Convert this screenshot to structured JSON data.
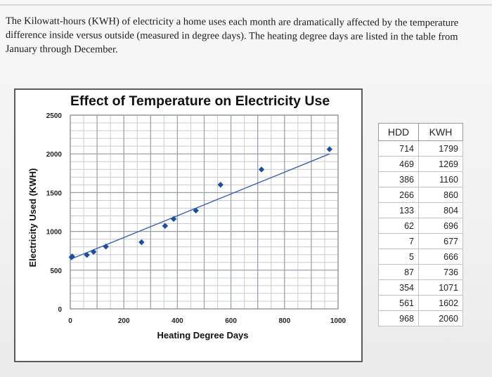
{
  "question": {
    "text": "The Kilowatt-hours (KWH) of electricity a home uses each month are dramatically affected by the temperature difference inside versus outside (measured in degree days). The heating degree days are listed in the table from January through December."
  },
  "chart_data": {
    "type": "scatter",
    "title": "Effect of Temperature on Electricity Use",
    "xlabel": "Heating Degree Days",
    "ylabel": "Electricity Used (KWH)",
    "xlim": [
      0,
      1000
    ],
    "ylim": [
      0,
      2500
    ],
    "x_ticks": [
      "0",
      "200",
      "400",
      "600",
      "800",
      "1000"
    ],
    "y_ticks": [
      "0",
      "500",
      "1000",
      "1500",
      "2000",
      "2500"
    ],
    "grid": true,
    "series": [
      {
        "points": [
          {
            "x": 714,
            "y": 1799
          },
          {
            "x": 469,
            "y": 1269
          },
          {
            "x": 386,
            "y": 1160
          },
          {
            "x": 266,
            "y": 860
          },
          {
            "x": 133,
            "y": 804
          },
          {
            "x": 62,
            "y": 696
          },
          {
            "x": 7,
            "y": 677
          },
          {
            "x": 5,
            "y": 666
          },
          {
            "x": 87,
            "y": 736
          },
          {
            "x": 354,
            "y": 1071
          },
          {
            "x": 561,
            "y": 1602
          },
          {
            "x": 968,
            "y": 2060
          }
        ]
      }
    ],
    "trendline": {
      "x": [
        0,
        968
      ],
      "y": [
        640,
        2000
      ]
    },
    "colors": {
      "marker": "#1c4f9e",
      "trendline": "#3c62a8",
      "grid": "#9aa0a8"
    }
  },
  "table": {
    "headers": [
      "HDD",
      "KWH"
    ],
    "rows": [
      [
        "714",
        "1799"
      ],
      [
        "469",
        "1269"
      ],
      [
        "386",
        "1160"
      ],
      [
        "266",
        "860"
      ],
      [
        "133",
        "804"
      ],
      [
        "62",
        "696"
      ],
      [
        "7",
        "677"
      ],
      [
        "5",
        "666"
      ],
      [
        "87",
        "736"
      ],
      [
        "354",
        "1071"
      ],
      [
        "561",
        "1602"
      ],
      [
        "968",
        "2060"
      ]
    ]
  }
}
